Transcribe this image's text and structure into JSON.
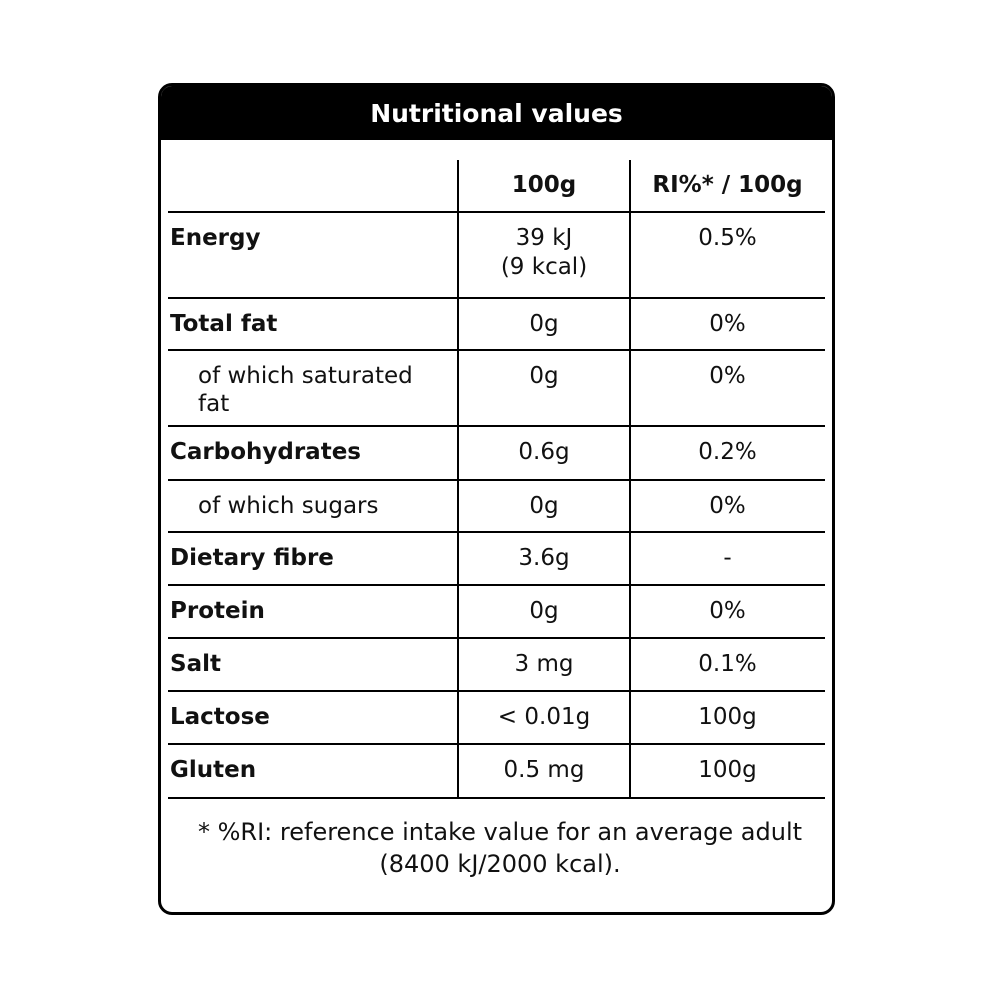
{
  "header": {
    "title": "Nutritional values"
  },
  "table": {
    "columns": [
      "100g",
      "RI%* / 100g"
    ],
    "rows": [
      {
        "label": "Energy",
        "level": 0,
        "per_100g": "39 kJ\n(9 kcal)",
        "ri": "0.5%"
      },
      {
        "label": "Total fat",
        "level": 0,
        "per_100g": "0g",
        "ri": "0%"
      },
      {
        "label": "of which saturated fat",
        "level": 1,
        "per_100g": "0g",
        "ri": "0%"
      },
      {
        "label": "Carbohydrates",
        "level": 0,
        "per_100g": "0.6g",
        "ri": "0.2%"
      },
      {
        "label": "of which sugars",
        "level": 1,
        "per_100g": "0g",
        "ri": "0%"
      },
      {
        "label": "Dietary fibre",
        "level": 0,
        "per_100g": "3.6g",
        "ri": "-"
      },
      {
        "label": "Protein",
        "level": 0,
        "per_100g": "0g",
        "ri": "0%"
      },
      {
        "label": "Salt",
        "level": 0,
        "per_100g": "3 mg",
        "ri": "0.1%"
      },
      {
        "label": "Lactose",
        "level": 0,
        "per_100g": "< 0.01g",
        "ri": "100g"
      },
      {
        "label": "Gluten",
        "level": 0,
        "per_100g": "0.5 mg",
        "ri": "100g"
      }
    ]
  },
  "footnote": "* %RI: reference intake value for an average adult (8400 kJ/2000 kcal)."
}
